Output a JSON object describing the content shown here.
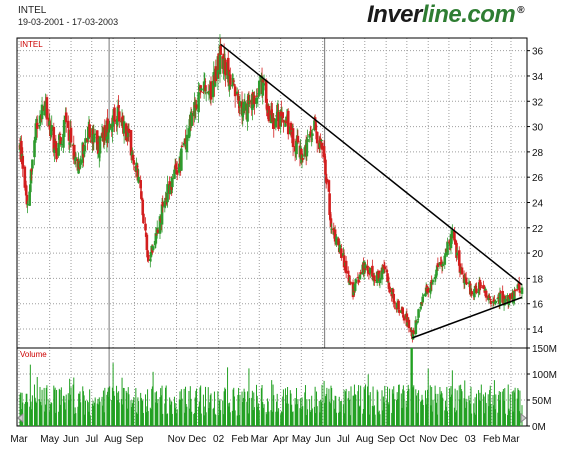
{
  "header": {
    "symbol": "INTEL",
    "date_range": "19-03-2001 - 17-03-2003",
    "brand_main": "Inver",
    "brand_accent": "line.com",
    "brand_mark": "®"
  },
  "colors": {
    "up": "#2e9b2e",
    "down": "#d21e1e",
    "volume": "#22a022",
    "trendline": "#000000"
  },
  "chart_data": [
    {
      "type": "candlestick",
      "title": "INTEL",
      "ylim": [
        12.5,
        37
      ],
      "yticks": [
        14,
        16,
        18,
        20,
        22,
        24,
        26,
        28,
        30,
        32,
        34,
        36
      ],
      "x_labels": [
        "Mar",
        "May",
        "Jun",
        "Jul",
        "Aug",
        "Sep",
        "Nov",
        "Dec",
        "02",
        "Feb",
        "Mar",
        "Apr",
        "May",
        "Jun",
        "Jul",
        "Aug",
        "Sep",
        "Oct",
        "Nov",
        "Dec",
        "03",
        "Feb",
        "Mar"
      ],
      "close_anchors": [
        {
          "x": "2001-03-19",
          "y": 28.5
        },
        {
          "x": "2001-03-30",
          "y": 24.0
        },
        {
          "x": "2001-04-12",
          "y": 30.0
        },
        {
          "x": "2001-04-25",
          "y": 31.5
        },
        {
          "x": "2001-05-10",
          "y": 28.0
        },
        {
          "x": "2001-05-25",
          "y": 30.5
        },
        {
          "x": "2001-06-10",
          "y": 27.0
        },
        {
          "x": "2001-06-28",
          "y": 29.5
        },
        {
          "x": "2001-07-12",
          "y": 28.5
        },
        {
          "x": "2001-07-28",
          "y": 30.5
        },
        {
          "x": "2001-08-10",
          "y": 30.8
        },
        {
          "x": "2001-08-25",
          "y": 29.0
        },
        {
          "x": "2001-09-10",
          "y": 25.0
        },
        {
          "x": "2001-09-21",
          "y": 19.5
        },
        {
          "x": "2001-10-05",
          "y": 22.0
        },
        {
          "x": "2001-10-20",
          "y": 25.0
        },
        {
          "x": "2001-11-05",
          "y": 27.0
        },
        {
          "x": "2001-11-20",
          "y": 30.0
        },
        {
          "x": "2001-12-05",
          "y": 33.0
        },
        {
          "x": "2001-12-20",
          "y": 32.5
        },
        {
          "x": "2002-01-04",
          "y": 35.8
        },
        {
          "x": "2002-01-18",
          "y": 33.5
        },
        {
          "x": "2002-02-05",
          "y": 31.0
        },
        {
          "x": "2002-02-20",
          "y": 32.0
        },
        {
          "x": "2002-03-05",
          "y": 33.5
        },
        {
          "x": "2002-03-20",
          "y": 30.0
        },
        {
          "x": "2002-04-05",
          "y": 31.0
        },
        {
          "x": "2002-04-20",
          "y": 29.0
        },
        {
          "x": "2002-05-05",
          "y": 27.5
        },
        {
          "x": "2002-05-20",
          "y": 30.0
        },
        {
          "x": "2002-06-03",
          "y": 28.0
        },
        {
          "x": "2002-06-14",
          "y": 22.0
        },
        {
          "x": "2002-06-28",
          "y": 20.0
        },
        {
          "x": "2002-07-15",
          "y": 17.0
        },
        {
          "x": "2002-07-31",
          "y": 19.0
        },
        {
          "x": "2002-08-15",
          "y": 18.0
        },
        {
          "x": "2002-08-30",
          "y": 18.5
        },
        {
          "x": "2002-09-15",
          "y": 16.0
        },
        {
          "x": "2002-09-30",
          "y": 14.8
        },
        {
          "x": "2002-10-09",
          "y": 13.5
        },
        {
          "x": "2002-10-22",
          "y": 16.0
        },
        {
          "x": "2002-11-08",
          "y": 18.0
        },
        {
          "x": "2002-11-22",
          "y": 19.5
        },
        {
          "x": "2002-12-05",
          "y": 21.5
        },
        {
          "x": "2002-12-18",
          "y": 18.5
        },
        {
          "x": "2003-01-03",
          "y": 17.0
        },
        {
          "x": "2003-01-17",
          "y": 17.5
        },
        {
          "x": "2003-01-31",
          "y": 16.0
        },
        {
          "x": "2003-02-14",
          "y": 16.5
        },
        {
          "x": "2003-02-28",
          "y": 16.3
        },
        {
          "x": "2003-03-17",
          "y": 17.5
        }
      ],
      "trendlines": [
        {
          "from": {
            "x": "2002-01-04",
            "y": 36.5
          },
          "to": {
            "x": "2003-03-17",
            "y": 17.5
          }
        },
        {
          "from": {
            "x": "2002-10-09",
            "y": 13.3
          },
          "to": {
            "x": "2003-03-17",
            "y": 16.5
          }
        }
      ]
    },
    {
      "type": "bar",
      "title": "Volume",
      "ylim": [
        0,
        150
      ],
      "unit": "M",
      "ytick_labels": [
        "0M",
        "50M",
        "100M",
        "150M"
      ],
      "yticks": [
        0,
        50,
        100,
        150
      ],
      "typical_range": [
        20,
        80
      ],
      "peak_value": 150
    }
  ]
}
